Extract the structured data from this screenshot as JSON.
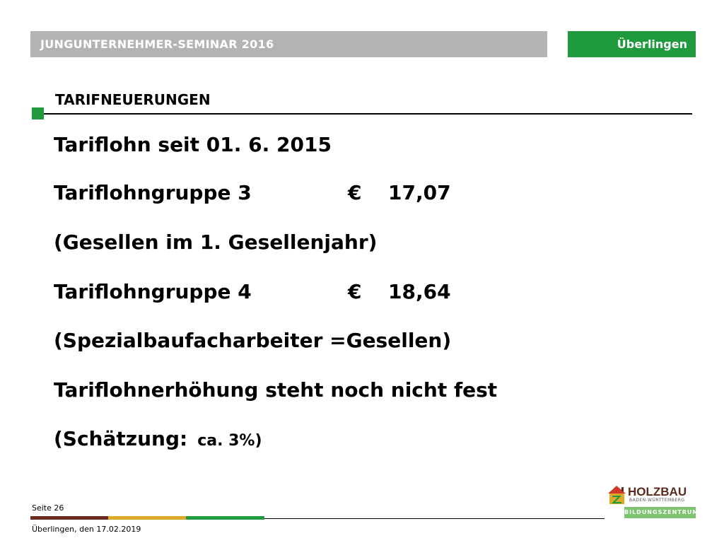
{
  "header": {
    "seminar_title": "JUNGUNTERNEHMER-SEMINAR 2016",
    "location": "Überlingen"
  },
  "section": {
    "title": "TARIFNEUERUNGEN"
  },
  "content": {
    "line1": "Tariflohn  seit 01. 6. 2015",
    "group3_label": "Tariflohngruppe 3",
    "group3_currency": "€",
    "group3_value": "17,07",
    "group3_note": "(Gesellen im 1. Gesellenjahr)",
    "group4_label": "Tariflohngruppe 4",
    "group4_currency": "€",
    "group4_value": "18,64",
    "group4_note": "(Spezialbaufacharbeiter =Gesellen)",
    "increase_text": "Tariflohnerhöhung  steht noch nicht fest",
    "estimate_label": "(Schätzung:",
    "estimate_value": "ca. 3%)"
  },
  "footer": {
    "page": "Seite 26",
    "date": "Überlingen, den 17.02.2019",
    "bar_colors": [
      "#6b2b22",
      "#e0a92a",
      "#1f9a3d"
    ]
  },
  "logo": {
    "brand_text": "HOLZBAU",
    "sub_text": "BADEN-WÜRTTEMBERG",
    "band_text": "BILDUNGSZENTRUM",
    "icon": "house-z-logo-icon"
  },
  "colors": {
    "header_gray": "#b3b3b3",
    "accent_green": "#1f9a3d"
  }
}
